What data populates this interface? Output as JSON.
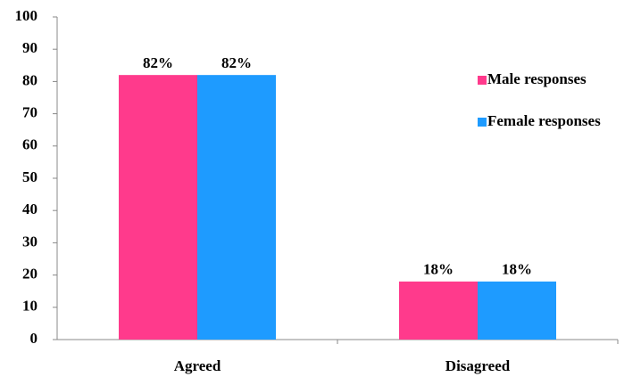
{
  "chart_data": {
    "type": "bar",
    "categories": [
      "Agreed",
      "Disagreed"
    ],
    "series": [
      {
        "name": "Male responses",
        "color": "#ff3a8c",
        "values": [
          82,
          18
        ],
        "value_labels": [
          "82%",
          "18%"
        ]
      },
      {
        "name": "Female responses",
        "color": "#1e9bff",
        "values": [
          82,
          18
        ],
        "value_labels": [
          "82%",
          "18%"
        ]
      }
    ],
    "ylim": [
      0,
      100
    ],
    "yticks": [
      0,
      10,
      20,
      30,
      40,
      50,
      60,
      70,
      80,
      90,
      100
    ],
    "grid": false,
    "legend": "right"
  }
}
